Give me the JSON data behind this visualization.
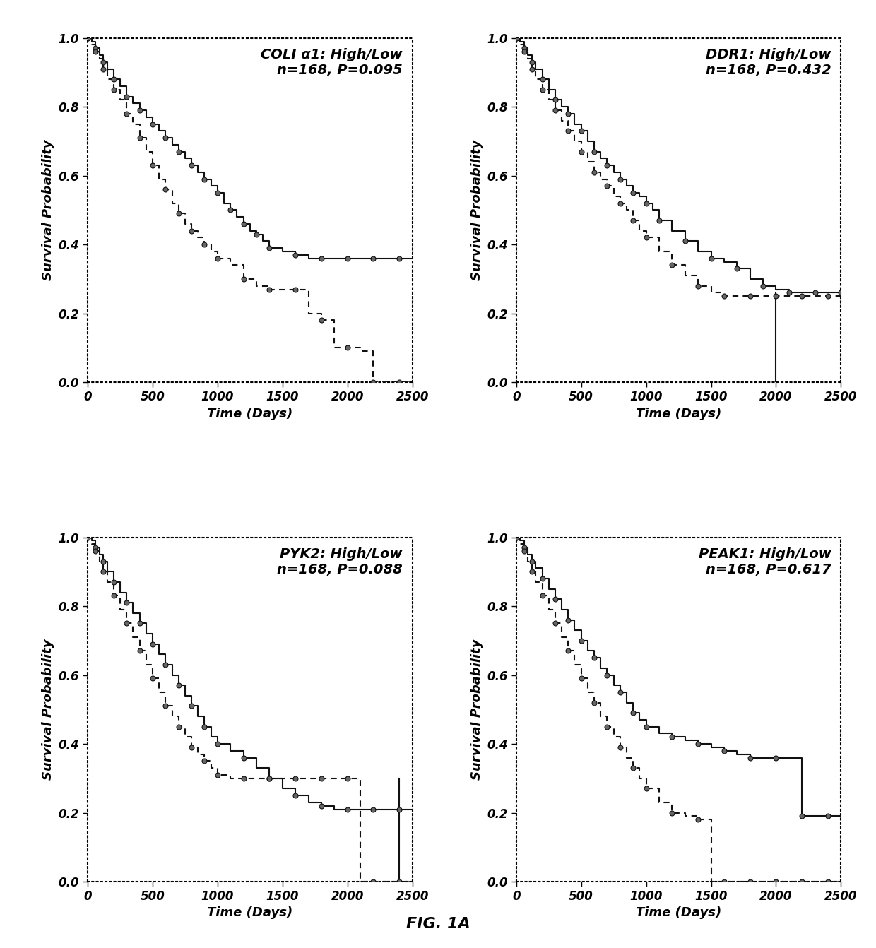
{
  "plots": [
    {
      "title": "COLI α1: High/Low",
      "subtitle": "n=168, P=0.095",
      "solid_line": {
        "x": [
          0,
          30,
          60,
          90,
          120,
          150,
          200,
          250,
          300,
          350,
          400,
          450,
          500,
          550,
          600,
          650,
          700,
          750,
          800,
          850,
          900,
          950,
          1000,
          1050,
          1100,
          1150,
          1200,
          1250,
          1300,
          1350,
          1400,
          1500,
          1600,
          1700,
          1800,
          1900,
          2000,
          2100,
          2200,
          2300,
          2400,
          2500
        ],
        "y": [
          1.0,
          0.99,
          0.97,
          0.95,
          0.93,
          0.91,
          0.88,
          0.86,
          0.83,
          0.81,
          0.79,
          0.77,
          0.75,
          0.73,
          0.71,
          0.69,
          0.67,
          0.65,
          0.63,
          0.61,
          0.59,
          0.57,
          0.55,
          0.52,
          0.5,
          0.48,
          0.46,
          0.44,
          0.43,
          0.41,
          0.39,
          0.38,
          0.37,
          0.36,
          0.36,
          0.36,
          0.36,
          0.36,
          0.36,
          0.36,
          0.36,
          0.36
        ]
      },
      "dashed_line": {
        "x": [
          0,
          30,
          60,
          90,
          120,
          150,
          200,
          250,
          300,
          350,
          400,
          450,
          500,
          550,
          600,
          650,
          700,
          750,
          800,
          850,
          900,
          950,
          1000,
          1100,
          1200,
          1300,
          1400,
          1500,
          1600,
          1700,
          1800,
          1900,
          2000,
          2100,
          2200,
          2300,
          2400,
          2500
        ],
        "y": [
          1.0,
          0.98,
          0.96,
          0.94,
          0.91,
          0.88,
          0.85,
          0.82,
          0.78,
          0.75,
          0.71,
          0.67,
          0.63,
          0.59,
          0.56,
          0.52,
          0.49,
          0.46,
          0.44,
          0.42,
          0.4,
          0.38,
          0.36,
          0.34,
          0.3,
          0.28,
          0.27,
          0.27,
          0.27,
          0.2,
          0.18,
          0.1,
          0.1,
          0.09,
          0.0,
          0.0,
          0.0,
          0.0
        ]
      }
    },
    {
      "title": "DDR1: High/Low",
      "subtitle": "n=168, P=0.432",
      "solid_line": {
        "x": [
          0,
          30,
          60,
          90,
          120,
          150,
          200,
          250,
          300,
          350,
          400,
          450,
          500,
          550,
          600,
          650,
          700,
          750,
          800,
          850,
          900,
          950,
          1000,
          1050,
          1100,
          1200,
          1300,
          1400,
          1500,
          1600,
          1700,
          1800,
          1900,
          2000,
          2100,
          2200,
          2300,
          2400,
          2500
        ],
        "y": [
          1.0,
          0.99,
          0.97,
          0.95,
          0.93,
          0.91,
          0.88,
          0.85,
          0.82,
          0.8,
          0.78,
          0.75,
          0.73,
          0.7,
          0.67,
          0.65,
          0.63,
          0.61,
          0.59,
          0.57,
          0.55,
          0.54,
          0.52,
          0.5,
          0.47,
          0.44,
          0.41,
          0.38,
          0.36,
          0.35,
          0.33,
          0.3,
          0.28,
          0.27,
          0.26,
          0.26,
          0.26,
          0.26,
          0.26
        ]
      },
      "dashed_line": {
        "x": [
          0,
          30,
          60,
          90,
          120,
          150,
          200,
          250,
          300,
          350,
          400,
          450,
          500,
          550,
          600,
          650,
          700,
          750,
          800,
          850,
          900,
          950,
          1000,
          1100,
          1200,
          1300,
          1400,
          1500,
          1600,
          1700,
          1800,
          1900,
          2000,
          2100,
          2200,
          2300,
          2400,
          2500
        ],
        "y": [
          1.0,
          0.98,
          0.96,
          0.94,
          0.91,
          0.88,
          0.85,
          0.82,
          0.79,
          0.76,
          0.73,
          0.7,
          0.67,
          0.64,
          0.61,
          0.59,
          0.57,
          0.54,
          0.52,
          0.5,
          0.47,
          0.44,
          0.42,
          0.38,
          0.34,
          0.31,
          0.28,
          0.26,
          0.25,
          0.25,
          0.25,
          0.25,
          0.25,
          0.25,
          0.25,
          0.25,
          0.25,
          0.25
        ]
      },
      "vertical_line": {
        "x": 2000,
        "y0": 0.0,
        "y1": 0.26
      }
    },
    {
      "title": "PYK2: High/Low",
      "subtitle": "n=168, P=0.088",
      "solid_line": {
        "x": [
          0,
          30,
          60,
          90,
          120,
          150,
          200,
          250,
          300,
          350,
          400,
          450,
          500,
          550,
          600,
          650,
          700,
          750,
          800,
          850,
          900,
          950,
          1000,
          1100,
          1200,
          1300,
          1400,
          1500,
          1600,
          1700,
          1800,
          1900,
          2000,
          2100,
          2200,
          2300,
          2400,
          2500
        ],
        "y": [
          1.0,
          0.99,
          0.97,
          0.95,
          0.93,
          0.9,
          0.87,
          0.84,
          0.81,
          0.78,
          0.75,
          0.72,
          0.69,
          0.66,
          0.63,
          0.6,
          0.57,
          0.54,
          0.51,
          0.48,
          0.45,
          0.42,
          0.4,
          0.38,
          0.36,
          0.33,
          0.3,
          0.27,
          0.25,
          0.23,
          0.22,
          0.21,
          0.21,
          0.21,
          0.21,
          0.21,
          0.21,
          0.21
        ]
      },
      "dashed_line": {
        "x": [
          0,
          30,
          60,
          90,
          120,
          150,
          200,
          250,
          300,
          350,
          400,
          450,
          500,
          550,
          600,
          650,
          700,
          750,
          800,
          850,
          900,
          950,
          1000,
          1100,
          1200,
          1300,
          1400,
          1500,
          1600,
          1700,
          1800,
          1900,
          2000,
          2100,
          2200,
          2300,
          2400,
          2500
        ],
        "y": [
          1.0,
          0.98,
          0.96,
          0.93,
          0.9,
          0.87,
          0.83,
          0.79,
          0.75,
          0.71,
          0.67,
          0.63,
          0.59,
          0.55,
          0.51,
          0.48,
          0.45,
          0.42,
          0.39,
          0.37,
          0.35,
          0.33,
          0.31,
          0.3,
          0.3,
          0.3,
          0.3,
          0.3,
          0.3,
          0.3,
          0.3,
          0.3,
          0.3,
          0.0,
          0.0,
          0.0,
          0.0,
          0.0
        ]
      },
      "vertical_line": {
        "x": 2400,
        "y0": 0.0,
        "y1": 0.3
      }
    },
    {
      "title": "PEAK1: High/Low",
      "subtitle": "n=168, P=0.617",
      "solid_line": {
        "x": [
          0,
          30,
          60,
          90,
          120,
          150,
          200,
          250,
          300,
          350,
          400,
          450,
          500,
          550,
          600,
          650,
          700,
          750,
          800,
          850,
          900,
          950,
          1000,
          1100,
          1200,
          1300,
          1400,
          1500,
          1600,
          1700,
          1800,
          1900,
          2000,
          2100,
          2200,
          2300,
          2400,
          2500
        ],
        "y": [
          1.0,
          0.99,
          0.97,
          0.95,
          0.93,
          0.91,
          0.88,
          0.85,
          0.82,
          0.79,
          0.76,
          0.73,
          0.7,
          0.67,
          0.65,
          0.62,
          0.6,
          0.57,
          0.55,
          0.52,
          0.49,
          0.47,
          0.45,
          0.43,
          0.42,
          0.41,
          0.4,
          0.39,
          0.38,
          0.37,
          0.36,
          0.36,
          0.36,
          0.36,
          0.19,
          0.19,
          0.19,
          0.19
        ]
      },
      "dashed_line": {
        "x": [
          0,
          30,
          60,
          90,
          120,
          150,
          200,
          250,
          300,
          350,
          400,
          450,
          500,
          550,
          600,
          650,
          700,
          750,
          800,
          850,
          900,
          950,
          1000,
          1100,
          1200,
          1300,
          1400,
          1500,
          1600,
          1700,
          1800,
          1900,
          2000,
          2100,
          2200,
          2300,
          2400,
          2500
        ],
        "y": [
          1.0,
          0.98,
          0.96,
          0.93,
          0.9,
          0.87,
          0.83,
          0.79,
          0.75,
          0.71,
          0.67,
          0.63,
          0.59,
          0.55,
          0.52,
          0.48,
          0.45,
          0.42,
          0.39,
          0.36,
          0.33,
          0.3,
          0.27,
          0.23,
          0.2,
          0.19,
          0.18,
          0.0,
          0.0,
          0.0,
          0.0,
          0.0,
          0.0,
          0.0,
          0.0,
          0.0,
          0.0,
          0.0
        ]
      }
    }
  ],
  "xlabel": "Time (Days)",
  "ylabel": "Survival Probability",
  "xlim": [
    0,
    2500
  ],
  "ylim": [
    0.0,
    1.0
  ],
  "xticks": [
    0,
    500,
    1000,
    1500,
    2000,
    2500
  ],
  "yticks": [
    0.0,
    0.2,
    0.4,
    0.6,
    0.8,
    1.0
  ],
  "fig_label": "FIG. 1A",
  "bg_color": "#f0f0f0",
  "line_color": "#111111",
  "marker_size": 5,
  "solid_lw": 1.5,
  "dashed_lw": 1.5,
  "title_fontsize": 14,
  "label_fontsize": 13,
  "tick_fontsize": 12
}
